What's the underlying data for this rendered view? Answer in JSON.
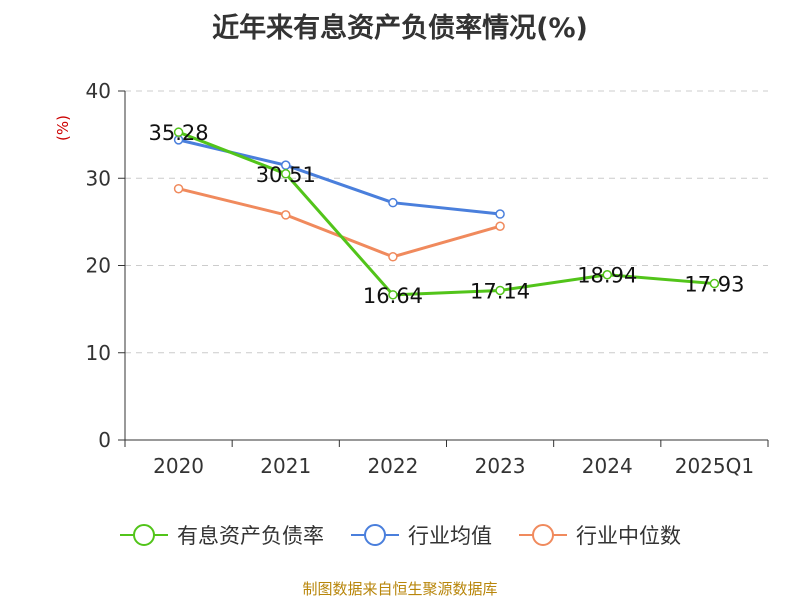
{
  "chart_data": {
    "type": "line",
    "title": "近年来有息资产负债率情况(%)",
    "ylabel": "(%)",
    "categories": [
      "2020",
      "2021",
      "2022",
      "2023",
      "2024",
      "2025Q1"
    ],
    "ylim": [
      0,
      40
    ],
    "yticks": [
      0,
      10,
      20,
      30,
      40
    ],
    "grid": true,
    "legend_position": "bottom",
    "series": [
      {
        "name": "有息资产负债率",
        "color": "#52c41a",
        "values": [
          35.28,
          30.51,
          16.64,
          17.14,
          18.94,
          17.93
        ],
        "labels": [
          "35.28",
          "30.51",
          "16.64",
          "17.14",
          "18.94",
          "17.93"
        ],
        "show_labels": true
      },
      {
        "name": "行业均值",
        "color": "#4a7fdc",
        "values": [
          34.4,
          31.5,
          27.2,
          25.9,
          null,
          null
        ],
        "show_labels": false
      },
      {
        "name": "行业中位数",
        "color": "#f08a5d",
        "values": [
          28.8,
          25.8,
          21.0,
          24.5,
          null,
          null
        ],
        "show_labels": false
      }
    ],
    "source": "制图数据来自恒生聚源数据库"
  }
}
